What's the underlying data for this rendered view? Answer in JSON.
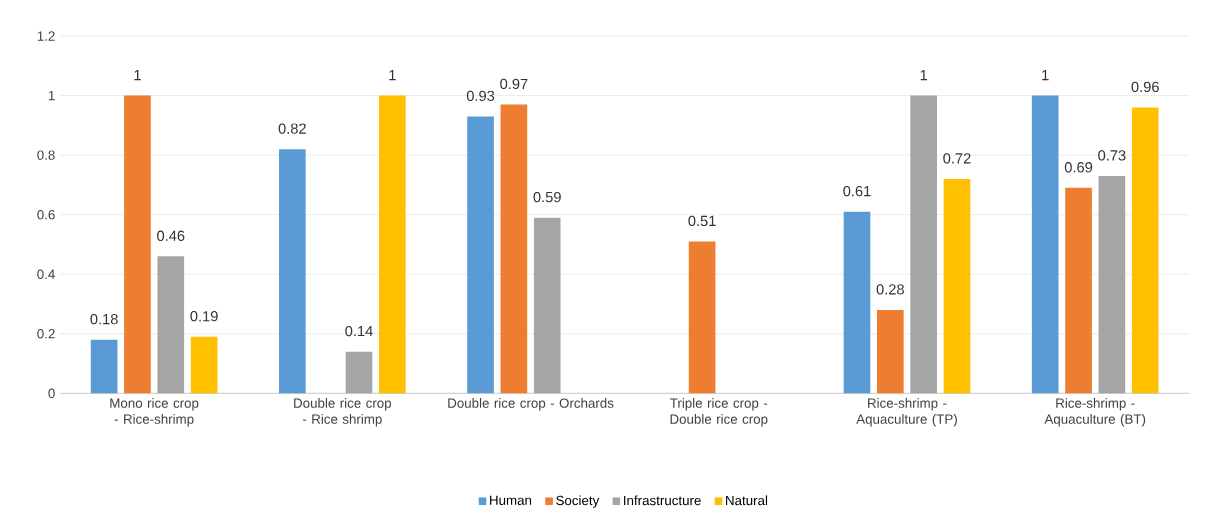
{
  "chart_data": {
    "type": "bar",
    "categories": [
      "Mono rice crop - Rice-shrimp",
      "Double rice crop - Rice shrimp",
      "Double rice crop - Orchards",
      "Triple rice crop - Double rice crop",
      "Rice-shrimp - Aquaculture (TP)",
      "Rice-shrimp - Aquaculture (BT)"
    ],
    "series": [
      {
        "name": "Human",
        "color": "#5b9bd5",
        "values": [
          0.18,
          0.82,
          0.93,
          null,
          0.61,
          1
        ]
      },
      {
        "name": "Society",
        "color": "#ed7d31",
        "values": [
          1,
          null,
          0.97,
          0.51,
          0.28,
          0.69
        ]
      },
      {
        "name": "Infrastructure",
        "color": "#a5a5a5",
        "values": [
          0.46,
          0.14,
          0.59,
          null,
          1,
          0.73
        ]
      },
      {
        "name": "Natural",
        "color": "#ffc000",
        "values": [
          0.19,
          1,
          null,
          null,
          0.72,
          0.96
        ]
      }
    ],
    "ylim": [
      0,
      1.2
    ],
    "yticks": [
      0,
      0.2,
      0.4,
      0.6,
      0.8,
      1,
      1.2
    ],
    "grid": "y",
    "legend": "bottom",
    "data_labels": true
  }
}
